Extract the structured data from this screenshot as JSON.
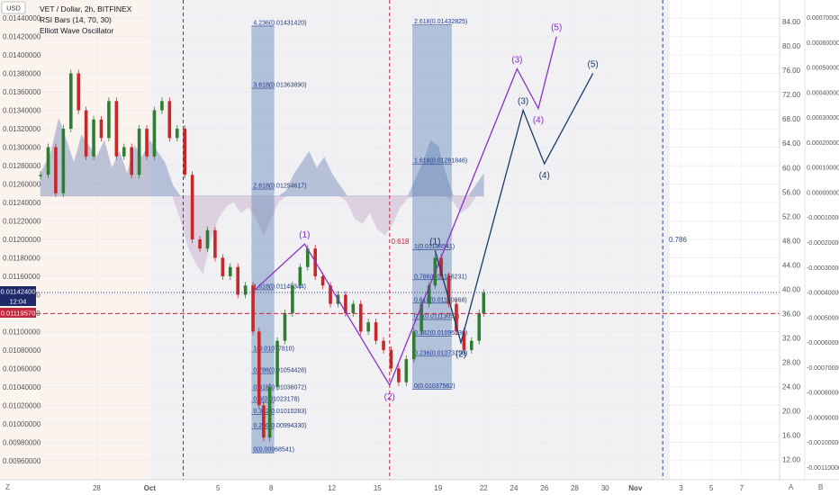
{
  "header": {
    "symbol_line": "VET / Dollar, 2h, BITFINEX",
    "indicator_1": "RSI Bars (14, 70, 30)",
    "indicator_2": "Elliott Wave Oscillator",
    "currency_badge": "USD"
  },
  "price_badges": {
    "current_price": "0.01142400",
    "countdown": "12:04",
    "level_price": "0.01119570"
  },
  "bottom_bar": {
    "left_button": "Z",
    "auto_button": "A",
    "log_button": "B"
  },
  "chart_data": {
    "type": "candlestick",
    "left_axis": {
      "ticks": [
        "0.01440000",
        "0.01420000",
        "0.01400000",
        "0.01380000",
        "0.01360000",
        "0.01340000",
        "0.01320000",
        "0.01300000",
        "0.01280000",
        "0.01260000",
        "0.01240000",
        "0.01220000",
        "0.01200000",
        "0.01180000",
        "0.01160000",
        "0.01140000",
        "0.01120000",
        "0.01100000",
        "0.01080000",
        "0.01060000",
        "0.01040000",
        "0.01020000",
        "0.01000000",
        "0.00980000",
        "0.00960000"
      ],
      "range": [
        0.00952,
        0.01446
      ]
    },
    "right_axis_1": {
      "ticks": [
        "84.00",
        "80.00",
        "76.00",
        "72.00",
        "68.00",
        "64.00",
        "60.00",
        "56.00",
        "52.00",
        "48.00",
        "44.00",
        "40.00",
        "36.00",
        "32.00",
        "28.00",
        "24.00",
        "20.00",
        "16.00",
        "12.00"
      ],
      "range": [
        10.6,
        85.5
      ]
    },
    "right_axis_2": {
      "ticks": [
        "0.00070000",
        "0.00060000",
        "0.00050000",
        "0.00040000",
        "0.00030000",
        "0.00020000",
        "0.00010000",
        "0.00000000",
        "-0.00010000",
        "-0.00020000",
        "-0.00030000",
        "-0.00040000",
        "-0.00050000",
        "-0.00060000",
        "-0.00070000",
        "-0.00080000",
        "-0.00090000",
        "-0.00100000",
        "-0.00110000"
      ]
    },
    "x_axis": {
      "ticks": [
        "28",
        "Oct",
        "5",
        "8",
        "12",
        "15",
        "19",
        "22",
        "24",
        "26",
        "28",
        "30",
        "Nov",
        "3",
        "5",
        "7"
      ],
      "tick_days": [
        -3.5,
        0,
        4.5,
        8,
        12,
        15,
        19,
        22,
        24,
        26,
        28,
        30,
        32,
        35,
        37,
        39
      ],
      "range_days": [
        -7.5,
        41.5
      ]
    },
    "price_points": [
      {
        "d": -7.2,
        "p": 0.0127
      },
      {
        "d": -6.7,
        "p": 0.013
      },
      {
        "d": -6.2,
        "p": 0.0125
      },
      {
        "d": -5.7,
        "p": 0.0132
      },
      {
        "d": -5.2,
        "p": 0.0138
      },
      {
        "d": -4.7,
        "p": 0.0134
      },
      {
        "d": -4.2,
        "p": 0.0129
      },
      {
        "d": -3.7,
        "p": 0.0133
      },
      {
        "d": -3.2,
        "p": 0.0131
      },
      {
        "d": -2.7,
        "p": 0.0135
      },
      {
        "d": -2.2,
        "p": 0.0129
      },
      {
        "d": -1.7,
        "p": 0.013
      },
      {
        "d": -1.2,
        "p": 0.0127
      },
      {
        "d": -0.7,
        "p": 0.0132
      },
      {
        "d": -0.2,
        "p": 0.0129
      },
      {
        "d": 0.3,
        "p": 0.0134
      },
      {
        "d": 0.8,
        "p": 0.0135
      },
      {
        "d": 1.3,
        "p": 0.0131
      },
      {
        "d": 1.8,
        "p": 0.0132
      },
      {
        "d": 2.3,
        "p": 0.0127
      },
      {
        "d": 2.8,
        "p": 0.012
      },
      {
        "d": 3.3,
        "p": 0.0119
      },
      {
        "d": 3.8,
        "p": 0.0121
      },
      {
        "d": 4.3,
        "p": 0.0118
      },
      {
        "d": 4.8,
        "p": 0.0116
      },
      {
        "d": 5.3,
        "p": 0.0117
      },
      {
        "d": 5.8,
        "p": 0.0114
      },
      {
        "d": 6.3,
        "p": 0.0115
      },
      {
        "d": 6.8,
        "p": 0.011
      },
      {
        "d": 7.2,
        "p": 0.0102
      },
      {
        "d": 7.5,
        "p": 0.00985
      },
      {
        "d": 7.9,
        "p": 0.0104
      },
      {
        "d": 8.4,
        "p": 0.0109
      },
      {
        "d": 8.9,
        "p": 0.0112
      },
      {
        "d": 9.4,
        "p": 0.0115
      },
      {
        "d": 9.9,
        "p": 0.0117
      },
      {
        "d": 10.4,
        "p": 0.0119
      },
      {
        "d": 10.9,
        "p": 0.0116
      },
      {
        "d": 11.4,
        "p": 0.0115
      },
      {
        "d": 11.9,
        "p": 0.0113
      },
      {
        "d": 12.4,
        "p": 0.0114
      },
      {
        "d": 12.9,
        "p": 0.0112
      },
      {
        "d": 13.4,
        "p": 0.0113
      },
      {
        "d": 13.9,
        "p": 0.011
      },
      {
        "d": 14.4,
        "p": 0.0111
      },
      {
        "d": 14.9,
        "p": 0.0109
      },
      {
        "d": 15.4,
        "p": 0.0108
      },
      {
        "d": 15.9,
        "p": 0.0106
      },
      {
        "d": 16.4,
        "p": 0.01045
      },
      {
        "d": 16.9,
        "p": 0.0107
      },
      {
        "d": 17.4,
        "p": 0.011
      },
      {
        "d": 17.9,
        "p": 0.0113
      },
      {
        "d": 18.4,
        "p": 0.0115
      },
      {
        "d": 18.8,
        "p": 0.0118
      },
      {
        "d": 19.2,
        "p": 0.0116
      },
      {
        "d": 19.7,
        "p": 0.0113
      },
      {
        "d": 20.2,
        "p": 0.011
      },
      {
        "d": 20.7,
        "p": 0.0108
      },
      {
        "d": 21.2,
        "p": 0.0109
      },
      {
        "d": 21.7,
        "p": 0.0112
      },
      {
        "d": 22.0,
        "p": 0.01142
      }
    ],
    "oscillator_points": [
      {
        "d": -7.2,
        "v": 0.0002
      },
      {
        "d": -6.5,
        "v": 0.0004
      },
      {
        "d": -6.0,
        "v": 0.0007
      },
      {
        "d": -5.5,
        "v": 0.0005
      },
      {
        "d": -5.0,
        "v": 0.0003
      },
      {
        "d": -4.5,
        "v": 0.00055
      },
      {
        "d": -4.0,
        "v": 0.00045
      },
      {
        "d": -3.5,
        "v": 0.00035
      },
      {
        "d": -3.0,
        "v": 0.0005
      },
      {
        "d": -2.5,
        "v": 0.00025
      },
      {
        "d": -2.0,
        "v": 0.0004
      },
      {
        "d": -1.5,
        "v": 0.0002
      },
      {
        "d": -1.0,
        "v": 0.00045
      },
      {
        "d": -0.5,
        "v": 0.00035
      },
      {
        "d": 0.0,
        "v": 0.0005
      },
      {
        "d": 0.5,
        "v": 0.0004
      },
      {
        "d": 1.0,
        "v": 0.0003
      },
      {
        "d": 1.5,
        "v": 0.0001
      },
      {
        "d": 2.0,
        "v": -0.0002
      },
      {
        "d": 2.5,
        "v": -0.00045
      },
      {
        "d": 3.0,
        "v": -0.0006
      },
      {
        "d": 3.5,
        "v": -0.0007
      },
      {
        "d": 4.0,
        "v": -0.0004
      },
      {
        "d": 4.5,
        "v": -0.0002
      },
      {
        "d": 5.0,
        "v": -0.0001
      },
      {
        "d": 5.5,
        "v": -5e-05
      },
      {
        "d": 6.0,
        "v": -0.00015
      },
      {
        "d": 6.5,
        "v": -0.0001
      },
      {
        "d": 7.0,
        "v": -0.0002
      },
      {
        "d": 7.5,
        "v": -0.00035
      },
      {
        "d": 8.0,
        "v": -0.0002
      },
      {
        "d": 8.5,
        "v": -5e-05
      },
      {
        "d": 9.0,
        "v": 5e-05
      },
      {
        "d": 9.5,
        "v": 0.0002
      },
      {
        "d": 10.0,
        "v": 0.0003
      },
      {
        "d": 10.5,
        "v": 0.0004
      },
      {
        "d": 11.0,
        "v": 0.00025
      },
      {
        "d": 11.5,
        "v": 0.00035
      },
      {
        "d": 12.0,
        "v": 0.0002
      },
      {
        "d": 12.5,
        "v": 0.0001
      },
      {
        "d": 13.0,
        "v": -5e-05
      },
      {
        "d": 13.5,
        "v": -0.0002
      },
      {
        "d": 14.0,
        "v": -0.00025
      },
      {
        "d": 14.5,
        "v": -0.00015
      },
      {
        "d": 15.0,
        "v": -0.0003
      },
      {
        "d": 15.5,
        "v": -0.00035
      },
      {
        "d": 16.0,
        "v": -0.00025
      },
      {
        "d": 16.5,
        "v": -0.0001
      },
      {
        "d": 17.0,
        "v": -2e-05
      },
      {
        "d": 17.5,
        "v": 0.00015
      },
      {
        "d": 18.0,
        "v": 0.0003
      },
      {
        "d": 18.5,
        "v": 0.0005
      },
      {
        "d": 19.0,
        "v": 0.00045
      },
      {
        "d": 19.5,
        "v": 0.0002
      },
      {
        "d": 20.0,
        "v": -5e-05
      },
      {
        "d": 20.5,
        "v": -0.00015
      },
      {
        "d": 21.0,
        "v": -0.0001
      },
      {
        "d": 21.5,
        "v": 0.0001
      },
      {
        "d": 22.0,
        "v": 0.0002
      }
    ],
    "oscillator_colors": {
      "positive": "#4b6ba8",
      "negative": "#b089b8"
    },
    "fib_box_left": {
      "d0": 6.7,
      "d1": 8.2,
      "color": "#5b7fb5",
      "levels": [
        {
          "label": "4.236(0.01431420)",
          "p": 0.0143142
        },
        {
          "label": "3.618(0.01363890)",
          "p": 0.0136389
        },
        {
          "label": "2.618(0.01254617)",
          "p": 0.01254617
        },
        {
          "label": "1.618(0.01145344)",
          "p": 0.01145344
        },
        {
          "label": "1(0.01077810)",
          "p": 0.0107781
        },
        {
          "label": "0.786(0.01054428)",
          "p": 0.01054428
        },
        {
          "label": "0.618(0.01036072)",
          "p": 0.01036072
        },
        {
          "label": "0.5(0.01023178)",
          "p": 0.01023178
        },
        {
          "label": "0.382(0.01010283)",
          "p": 0.01010283
        },
        {
          "label": "0.236(0.00994330)",
          "p": 0.0099433
        },
        {
          "label": "0(0.00968541)",
          "p": 0.00968541
        }
      ]
    },
    "fib_box_right": {
      "d0": 17.3,
      "d1": 19.9,
      "color": "#5b7fb5",
      "levels": [
        {
          "label": "2.618(0.01432825)",
          "p": 0.01432825
        },
        {
          "label": "1.618(0.01281846)",
          "p": 0.01281846
        },
        {
          "label": "1(0.01188541)",
          "p": 0.01188541
        },
        {
          "label": "0.786(0.01156231)",
          "p": 0.01156231
        },
        {
          "label": "0.618(0.01130868)",
          "p": 0.01130868
        },
        {
          "label": "0.5(0.01113051)",
          "p": 0.01113051
        },
        {
          "label": "0.382(0.01095236)",
          "p": 0.01095236
        },
        {
          "label": "0.236(0.01073193)",
          "p": 0.01073193
        },
        {
          "label": "0(0.01037562)",
          "p": 0.01037562
        }
      ]
    },
    "vertical_markers": [
      {
        "d": 2.2,
        "color": "#2a4a8a",
        "style": "dashed"
      },
      {
        "d": 15.8,
        "color": "#c2283d",
        "style": "dashed"
      },
      {
        "d": 33.8,
        "color": "#2a4a8a",
        "style": "dashed"
      }
    ],
    "horizontal_lines": [
      {
        "p": 0.011424,
        "color": "#2a3a8a",
        "style": "dotted"
      },
      {
        "p": 0.0111957,
        "color": "#c2283d",
        "style": "dashed"
      }
    ],
    "annotations": [
      {
        "text": "0.618",
        "d": 15.9,
        "p": 0.01195,
        "color": "#c2283d"
      },
      {
        "text": "0.786",
        "d": 34.2,
        "p": 0.01197,
        "color": "#2a4a8a"
      }
    ],
    "wave_count_purple": {
      "color": "#8b2fc9",
      "points": [
        {
          "label": "",
          "d": 6.9,
          "p": 0.01145
        },
        {
          "label": "(1)",
          "d": 10.2,
          "p": 0.01195
        },
        {
          "label": "(2)",
          "d": 15.8,
          "p": 0.01042
        },
        {
          "label": "(3)",
          "d": 24.2,
          "p": 0.01385
        },
        {
          "label": "(4)",
          "d": 25.6,
          "p": 0.01342
        },
        {
          "label": "(5)",
          "d": 26.8,
          "p": 0.0142
        }
      ]
    },
    "wave_count_blue": {
      "color": "#1a3a6a",
      "points": [
        {
          "label": "(1)",
          "d": 18.8,
          "p": 0.01188
        },
        {
          "label": "(2)",
          "d": 20.5,
          "p": 0.01088
        },
        {
          "label": "(3)",
          "d": 24.6,
          "p": 0.0134
        },
        {
          "label": "(4)",
          "d": 26.0,
          "p": 0.01282
        },
        {
          "label": "(5)",
          "d": 29.2,
          "p": 0.0138
        }
      ]
    }
  }
}
